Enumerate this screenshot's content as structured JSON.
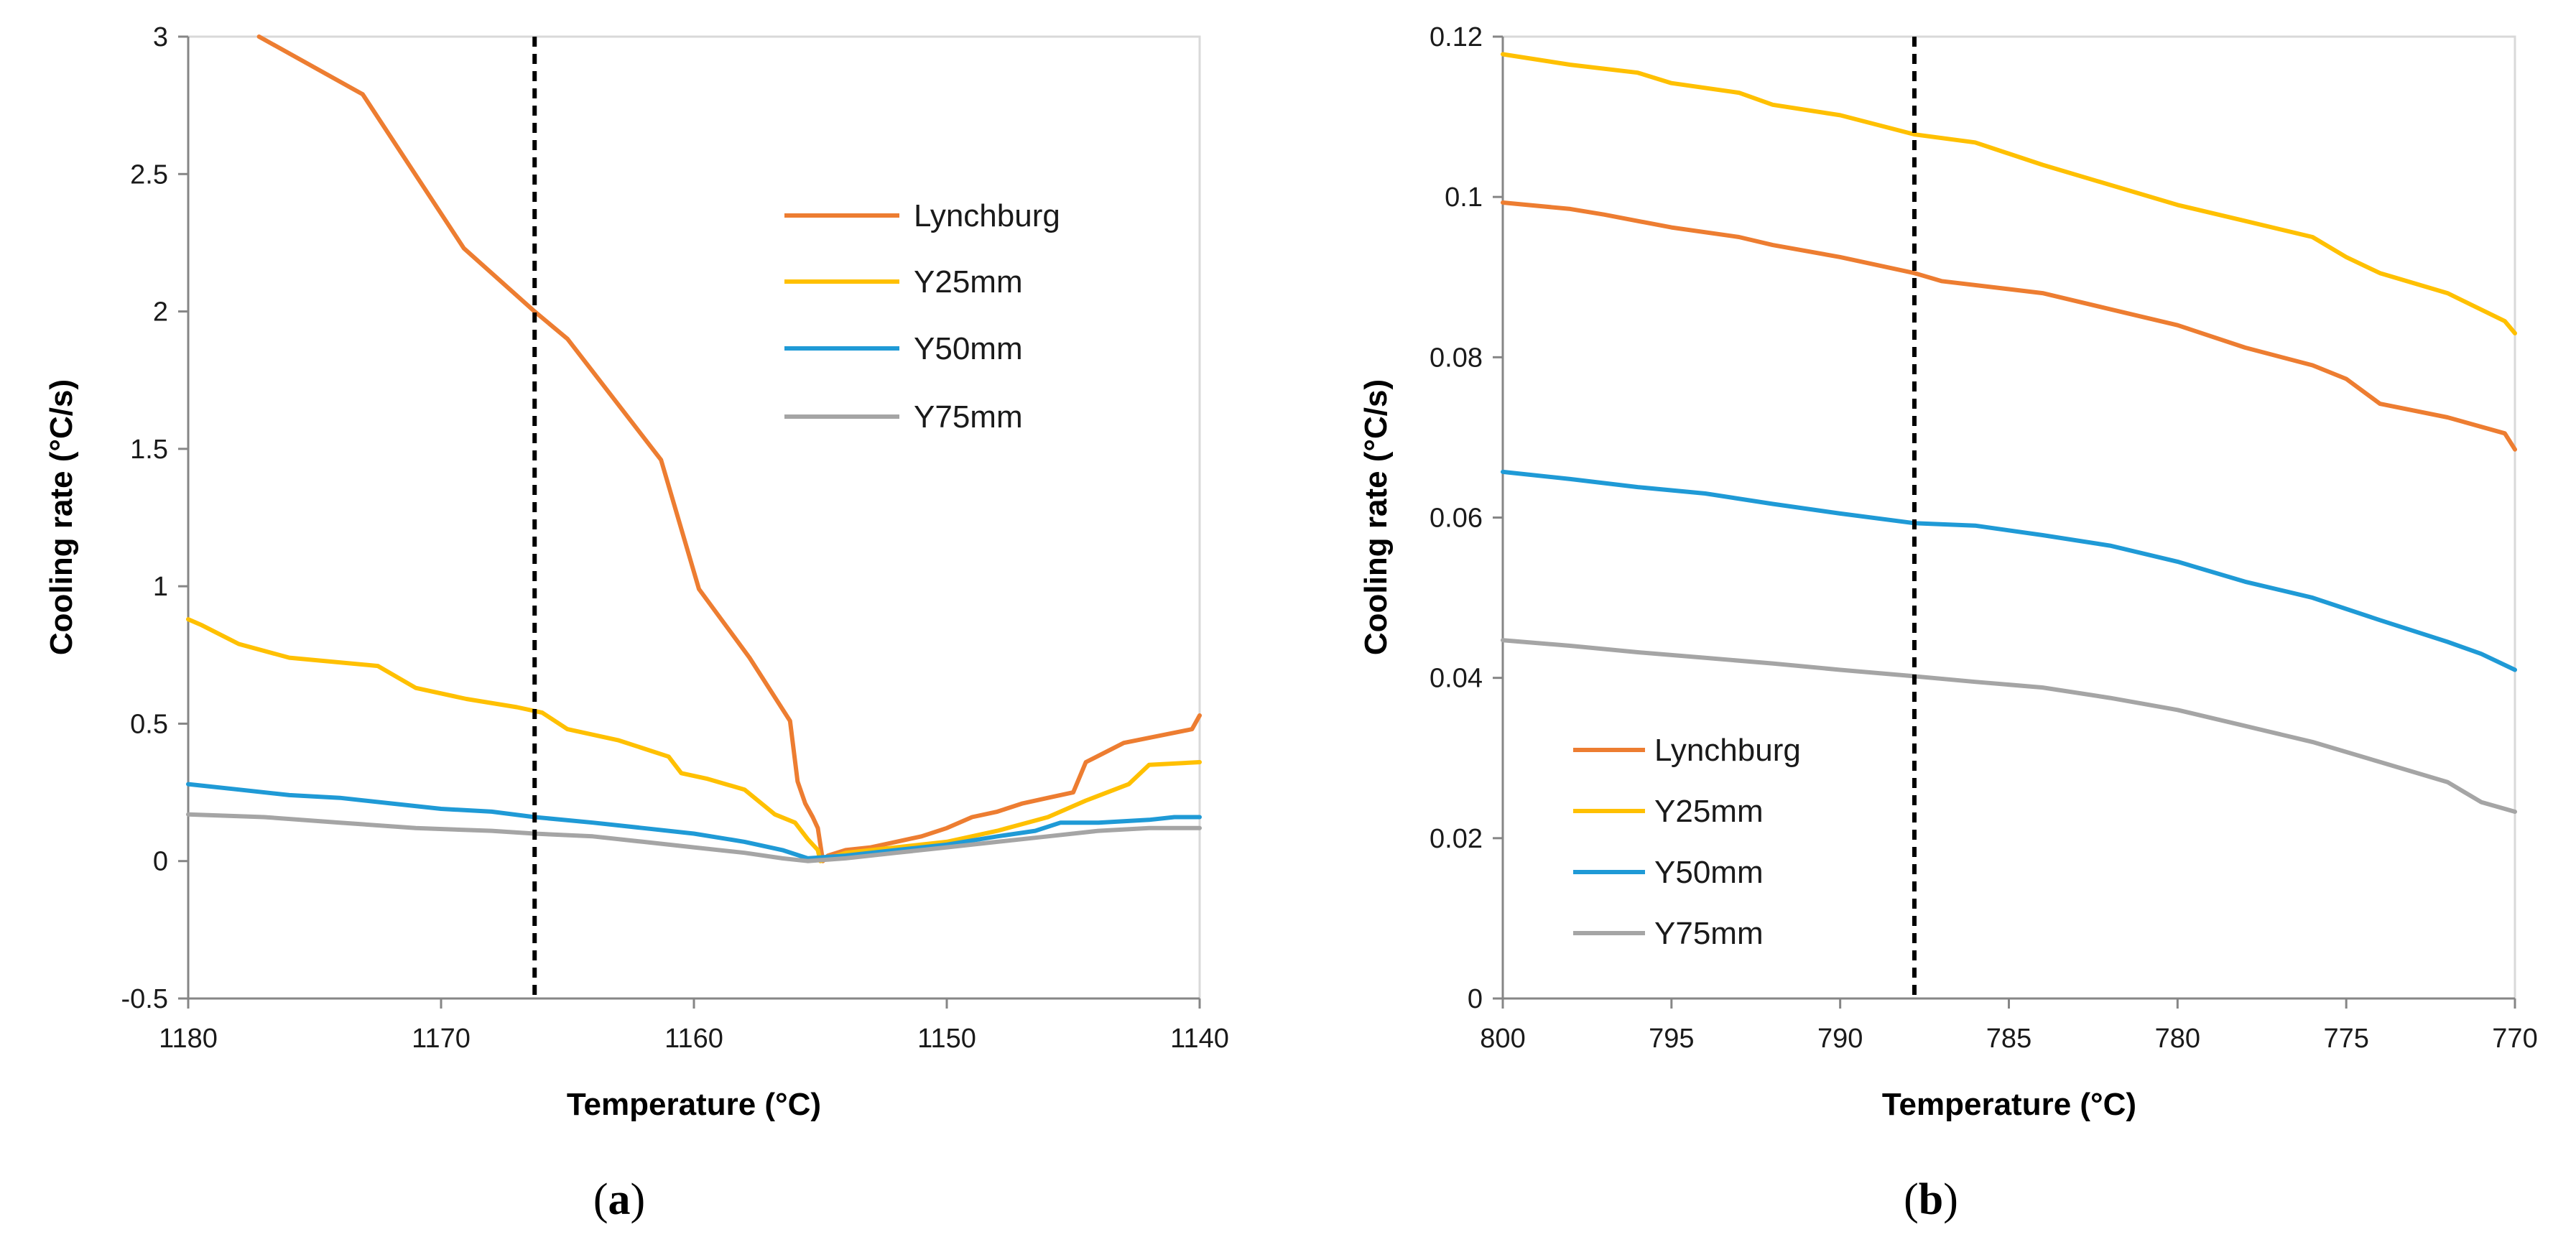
{
  "chart_data": [
    {
      "type": "line",
      "panel_label": "(a)",
      "panel_label_parts": [
        "(",
        "a",
        ")"
      ],
      "xlabel": "Temperature (°C)",
      "ylabel": "Cooling rate (°C/s)",
      "xlim": [
        1180,
        1140
      ],
      "ylim": [
        -0.5,
        3
      ],
      "xticks": [
        1180,
        1170,
        1160,
        1150,
        1140
      ],
      "yticks": [
        -0.5,
        0,
        0.5,
        1,
        1.5,
        2,
        2.5,
        3
      ],
      "ytick_labels": [
        "-0.5",
        "0",
        "0.5",
        "1",
        "1.5",
        "2",
        "2.5",
        "3"
      ],
      "xtick_labels": [
        "1180",
        "1170",
        "1160",
        "1150",
        "1140"
      ],
      "vline": 1166.3,
      "grid": false,
      "legend": "top-right",
      "series": [
        {
          "name": "Lynchburg",
          "color": "#ed7d31",
          "x": [
            1177.2,
            1173.1,
            1169.1,
            1166.3,
            1165.0,
            1161.3,
            1159.8,
            1157.8,
            1156.2,
            1155.9,
            1155.6,
            1155.3,
            1155.1,
            1154.9,
            1154.7,
            1154.0,
            1153.0,
            1152.0,
            1151.0,
            1150.0,
            1149.0,
            1148.0,
            1147.0,
            1146.0,
            1145.0,
            1144.5,
            1143.0,
            1140.3,
            1140.0
          ],
          "y": [
            3.0,
            2.79,
            2.23,
            2.0,
            1.9,
            1.46,
            0.99,
            0.74,
            0.51,
            0.29,
            0.21,
            0.16,
            0.12,
            0.0,
            0.02,
            0.04,
            0.05,
            0.07,
            0.09,
            0.12,
            0.16,
            0.18,
            0.21,
            0.23,
            0.25,
            0.36,
            0.43,
            0.48,
            0.53
          ]
        },
        {
          "name": "Y25mm",
          "color": "#ffc000",
          "x": [
            1180.0,
            1179.5,
            1178.0,
            1176.0,
            1172.5,
            1171.0,
            1169.0,
            1167.0,
            1166.0,
            1165.0,
            1163.0,
            1161.0,
            1160.5,
            1159.5,
            1158.0,
            1156.8,
            1156.0,
            1155.5,
            1155.1,
            1155.0,
            1154.0,
            1152.0,
            1150.0,
            1148.0,
            1146.0,
            1144.5,
            1142.8,
            1142.0,
            1140.0
          ],
          "y": [
            0.88,
            0.86,
            0.79,
            0.74,
            0.71,
            0.63,
            0.59,
            0.56,
            0.54,
            0.48,
            0.44,
            0.38,
            0.32,
            0.3,
            0.26,
            0.17,
            0.14,
            0.08,
            0.04,
            0.0,
            0.03,
            0.05,
            0.07,
            0.11,
            0.16,
            0.22,
            0.28,
            0.35,
            0.36
          ]
        },
        {
          "name": "Y50mm",
          "color": "#1f9ad6",
          "x": [
            1180.0,
            1178.0,
            1176.0,
            1174.0,
            1172.0,
            1170.0,
            1168.0,
            1166.3,
            1164.0,
            1162.0,
            1160.0,
            1158.0,
            1156.5,
            1155.5,
            1154.0,
            1152.0,
            1150.0,
            1148.0,
            1146.5,
            1145.5,
            1144.0,
            1142.0,
            1141.0,
            1140.0
          ],
          "y": [
            0.28,
            0.26,
            0.24,
            0.23,
            0.21,
            0.19,
            0.18,
            0.16,
            0.14,
            0.12,
            0.1,
            0.07,
            0.04,
            0.01,
            0.02,
            0.04,
            0.06,
            0.09,
            0.11,
            0.14,
            0.14,
            0.15,
            0.16,
            0.16
          ]
        },
        {
          "name": "Y75mm",
          "color": "#a5a5a5",
          "x": [
            1180.0,
            1177.0,
            1174.0,
            1171.0,
            1168.0,
            1166.3,
            1164.0,
            1162.0,
            1160.0,
            1158.0,
            1156.5,
            1155.5,
            1154.0,
            1152.0,
            1150.0,
            1148.0,
            1146.0,
            1144.0,
            1142.0,
            1140.0
          ],
          "y": [
            0.17,
            0.16,
            0.14,
            0.12,
            0.11,
            0.1,
            0.09,
            0.07,
            0.05,
            0.03,
            0.01,
            0.0,
            0.01,
            0.03,
            0.05,
            0.07,
            0.09,
            0.11,
            0.12,
            0.12
          ]
        }
      ]
    },
    {
      "type": "line",
      "panel_label": "(b)",
      "panel_label_parts": [
        "(",
        "b",
        ")"
      ],
      "xlabel": "Temperature (°C)",
      "ylabel": "Cooling rate (°C/s)",
      "xlim": [
        800,
        770
      ],
      "ylim": [
        0,
        0.12
      ],
      "xticks": [
        800,
        795,
        790,
        785,
        780,
        775,
        770
      ],
      "yticks": [
        0,
        0.02,
        0.04,
        0.06,
        0.08,
        0.1,
        0.12
      ],
      "ytick_labels": [
        "0",
        "0.02",
        "0.04",
        "0.06",
        "0.08",
        "0.1",
        "0.12"
      ],
      "xtick_labels": [
        "800",
        "795",
        "790",
        "785",
        "780",
        "775",
        "770"
      ],
      "vline": 787.8,
      "grid": false,
      "legend": "bottom-left",
      "series": [
        {
          "name": "Lynchburg",
          "color": "#ed7d31",
          "x": [
            800,
            798,
            797,
            795,
            793,
            792,
            790,
            787.8,
            787,
            784,
            782,
            780,
            778,
            776,
            775,
            774,
            772,
            770.3,
            770
          ],
          "y": [
            0.0993,
            0.0985,
            0.0978,
            0.0962,
            0.095,
            0.094,
            0.0925,
            0.0905,
            0.0895,
            0.088,
            0.086,
            0.084,
            0.0812,
            0.079,
            0.0773,
            0.0742,
            0.0725,
            0.0705,
            0.0685
          ]
        },
        {
          "name": "Y25mm",
          "color": "#ffc000",
          "x": [
            800,
            798,
            796,
            795,
            793,
            792,
            790,
            787.8,
            786,
            784,
            782,
            780,
            778,
            776,
            775,
            774,
            772,
            770.3,
            770
          ],
          "y": [
            0.1178,
            0.1165,
            0.1155,
            0.1142,
            0.113,
            0.1115,
            0.1102,
            0.1078,
            0.1068,
            0.104,
            0.1015,
            0.099,
            0.097,
            0.095,
            0.0925,
            0.0905,
            0.088,
            0.0845,
            0.083
          ]
        },
        {
          "name": "Y50mm",
          "color": "#1f9ad6",
          "x": [
            800,
            798,
            796,
            794,
            792,
            790,
            787.8,
            786,
            784,
            782,
            780,
            778,
            776,
            774,
            772,
            771,
            770
          ],
          "y": [
            0.0657,
            0.0648,
            0.0638,
            0.063,
            0.0617,
            0.0605,
            0.0593,
            0.059,
            0.0578,
            0.0565,
            0.0545,
            0.052,
            0.05,
            0.0472,
            0.0445,
            0.043,
            0.041
          ]
        },
        {
          "name": "Y75mm",
          "color": "#a5a5a5",
          "x": [
            800,
            798,
            796,
            794,
            792,
            790,
            787.8,
            786,
            784,
            782,
            780,
            778,
            776,
            774,
            772,
            771,
            770
          ],
          "y": [
            0.0447,
            0.044,
            0.0432,
            0.0425,
            0.0418,
            0.041,
            0.0402,
            0.0395,
            0.0388,
            0.0375,
            0.036,
            0.034,
            0.032,
            0.0295,
            0.027,
            0.0245,
            0.0233
          ]
        }
      ]
    }
  ]
}
